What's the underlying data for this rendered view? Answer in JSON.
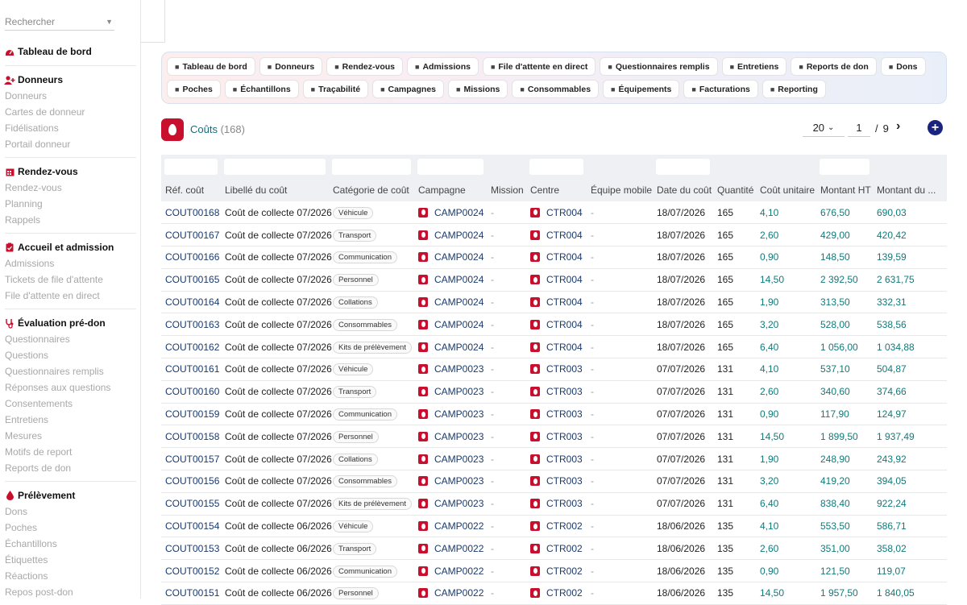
{
  "sidebar": {
    "search_placeholder": "Rechercher",
    "dashboard": "Tableau de bord",
    "sections": [
      {
        "title": "Donneurs",
        "icon": "user-plus-icon",
        "items": [
          "Donneurs",
          "Cartes de donneur",
          "Fidélisations",
          "Portail donneur"
        ]
      },
      {
        "title": "Rendez-vous",
        "icon": "calendar-icon",
        "items": [
          "Rendez-vous",
          "Planning",
          "Rappels"
        ]
      },
      {
        "title": "Accueil et admission",
        "icon": "clipboard-icon",
        "items": [
          "Admissions",
          "Tickets de file d'attente",
          "File d'attente en direct"
        ]
      },
      {
        "title": "Évaluation pré-don",
        "icon": "stethoscope-icon",
        "items": [
          "Questionnaires",
          "Questions",
          "Questionnaires remplis",
          "Réponses aux questions",
          "Consentements",
          "Entretiens",
          "Mesures",
          "Motifs de report",
          "Reports de don"
        ]
      },
      {
        "title": "Prélèvement",
        "icon": "drop-icon",
        "items": [
          "Dons",
          "Poches",
          "Échantillons",
          "Étiquettes",
          "Réactions",
          "Repos post-don"
        ]
      }
    ]
  },
  "nav": {
    "row1": [
      "Tableau de bord",
      "Donneurs",
      "Rendez-vous",
      "Admissions",
      "File d'attente en direct",
      "Questionnaires remplis",
      "Entretiens",
      "Reports de don",
      "Dons"
    ],
    "row2": [
      "Poches",
      "Échantillons",
      "Traçabilité",
      "Campagnes",
      "Missions",
      "Consommables",
      "Équipements",
      "Facturations",
      "Reporting"
    ]
  },
  "header": {
    "title": "Coûts",
    "count": "(168)",
    "page_size": "20",
    "page": "1",
    "page_sep": "/",
    "page_total": "9"
  },
  "columns": [
    "Réf. coût",
    "Libellé du coût",
    "Catégorie de coût",
    "Campagne",
    "Mission",
    "Centre",
    "Équipe mobile",
    "Date du coût",
    "Quantité",
    "Coût unitaire",
    "Montant HT",
    "Montant du ..."
  ],
  "rows": [
    [
      "COUT00168",
      "Coût de collecte 07/2026",
      "Véhicule",
      "CAMP0024",
      "-",
      "CTR004",
      "-",
      "18/07/2026",
      "165",
      "4,10",
      "676,50",
      "690,03"
    ],
    [
      "COUT00167",
      "Coût de collecte 07/2026",
      "Transport",
      "CAMP0024",
      "-",
      "CTR004",
      "-",
      "18/07/2026",
      "165",
      "2,60",
      "429,00",
      "420,42"
    ],
    [
      "COUT00166",
      "Coût de collecte 07/2026",
      "Communication",
      "CAMP0024",
      "-",
      "CTR004",
      "-",
      "18/07/2026",
      "165",
      "0,90",
      "148,50",
      "139,59"
    ],
    [
      "COUT00165",
      "Coût de collecte 07/2026",
      "Personnel",
      "CAMP0024",
      "-",
      "CTR004",
      "-",
      "18/07/2026",
      "165",
      "14,50",
      "2 392,50",
      "2 631,75"
    ],
    [
      "COUT00164",
      "Coût de collecte 07/2026",
      "Collations",
      "CAMP0024",
      "-",
      "CTR004",
      "-",
      "18/07/2026",
      "165",
      "1,90",
      "313,50",
      "332,31"
    ],
    [
      "COUT00163",
      "Coût de collecte 07/2026",
      "Consommables",
      "CAMP0024",
      "-",
      "CTR004",
      "-",
      "18/07/2026",
      "165",
      "3,20",
      "528,00",
      "538,56"
    ],
    [
      "COUT00162",
      "Coût de collecte 07/2026",
      "Kits de prélèvement",
      "CAMP0024",
      "-",
      "CTR004",
      "-",
      "18/07/2026",
      "165",
      "6,40",
      "1 056,00",
      "1 034,88"
    ],
    [
      "COUT00161",
      "Coût de collecte 07/2026",
      "Véhicule",
      "CAMP0023",
      "-",
      "CTR003",
      "-",
      "07/07/2026",
      "131",
      "4,10",
      "537,10",
      "504,87"
    ],
    [
      "COUT00160",
      "Coût de collecte 07/2026",
      "Transport",
      "CAMP0023",
      "-",
      "CTR003",
      "-",
      "07/07/2026",
      "131",
      "2,60",
      "340,60",
      "374,66"
    ],
    [
      "COUT00159",
      "Coût de collecte 07/2026",
      "Communication",
      "CAMP0023",
      "-",
      "CTR003",
      "-",
      "07/07/2026",
      "131",
      "0,90",
      "117,90",
      "124,97"
    ],
    [
      "COUT00158",
      "Coût de collecte 07/2026",
      "Personnel",
      "CAMP0023",
      "-",
      "CTR003",
      "-",
      "07/07/2026",
      "131",
      "14,50",
      "1 899,50",
      "1 937,49"
    ],
    [
      "COUT00157",
      "Coût de collecte 07/2026",
      "Collations",
      "CAMP0023",
      "-",
      "CTR003",
      "-",
      "07/07/2026",
      "131",
      "1,90",
      "248,90",
      "243,92"
    ],
    [
      "COUT00156",
      "Coût de collecte 07/2026",
      "Consommables",
      "CAMP0023",
      "-",
      "CTR003",
      "-",
      "07/07/2026",
      "131",
      "3,20",
      "419,20",
      "394,05"
    ],
    [
      "COUT00155",
      "Coût de collecte 07/2026",
      "Kits de prélèvement",
      "CAMP0023",
      "-",
      "CTR003",
      "-",
      "07/07/2026",
      "131",
      "6,40",
      "838,40",
      "922,24"
    ],
    [
      "COUT00154",
      "Coût de collecte 06/2026",
      "Véhicule",
      "CAMP0022",
      "-",
      "CTR002",
      "-",
      "18/06/2026",
      "135",
      "4,10",
      "553,50",
      "586,71"
    ],
    [
      "COUT00153",
      "Coût de collecte 06/2026",
      "Transport",
      "CAMP0022",
      "-",
      "CTR002",
      "-",
      "18/06/2026",
      "135",
      "2,60",
      "351,00",
      "358,02"
    ],
    [
      "COUT00152",
      "Coût de collecte 06/2026",
      "Communication",
      "CAMP0022",
      "-",
      "CTR002",
      "-",
      "18/06/2026",
      "135",
      "0,90",
      "121,50",
      "119,07"
    ],
    [
      "COUT00151",
      "Coût de collecte 06/2026",
      "Personnel",
      "CAMP0022",
      "-",
      "CTR002",
      "-",
      "18/06/2026",
      "135",
      "14,50",
      "1 957,50",
      "1 840,05"
    ]
  ]
}
